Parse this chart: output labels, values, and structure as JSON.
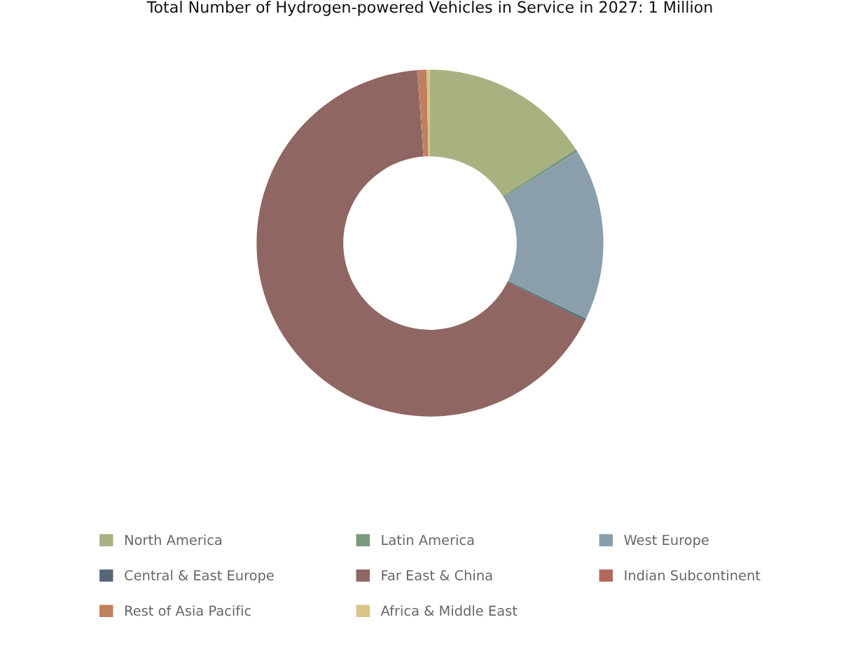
{
  "chart_data": {
    "type": "donut",
    "title": "Total Number of Hydrogen-powered Vehicles in Service in 2027: 1 Million",
    "categories": [
      "North America",
      "Latin America",
      "West Europe",
      "Central & East Europe",
      "Far East & China",
      "Indian Subcontinent",
      "Rest of Asia Pacific",
      "Africa & Middle East"
    ],
    "values": [
      15.9,
      0.3,
      16.0,
      0.2,
      66.4,
      0.1,
      0.8,
      0.3
    ],
    "colors": [
      "#a8b281",
      "#7a9a7e",
      "#8a9eac",
      "#56677a",
      "#8f6662",
      "#b06a5c",
      "#c07f5e",
      "#d9c48a"
    ],
    "legend": "bottom"
  }
}
